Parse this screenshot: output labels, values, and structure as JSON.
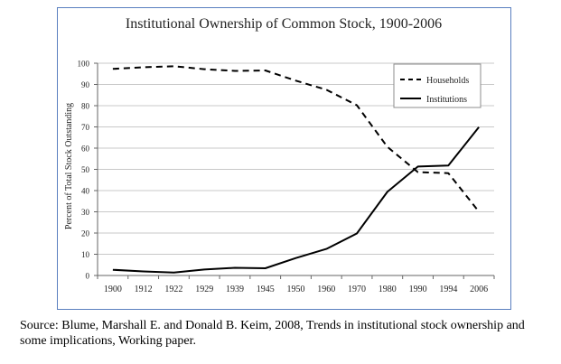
{
  "chart_data": {
    "type": "line",
    "title": "Institutional Ownership of Common Stock, 1900-2006",
    "xlabel": "",
    "ylabel": "Percent of Total Stock Outstanding",
    "categories": [
      "1900",
      "1912",
      "1922",
      "1929",
      "1939",
      "1945",
      "1950",
      "1960",
      "1970",
      "1980",
      "1990",
      "1994",
      "2006"
    ],
    "ylim": [
      0,
      100
    ],
    "yticks": [
      "0",
      "10",
      "20",
      "30",
      "40",
      "50",
      "60",
      "70",
      "80",
      "90",
      "100"
    ],
    "grid": true,
    "legend_position": "top-right",
    "series": [
      {
        "name": "Households",
        "style": "dashed",
        "values": [
          97.3,
          98.1,
          98.6,
          97.2,
          96.4,
          96.6,
          91.8,
          87.5,
          80.2,
          60.6,
          48.7,
          48.2,
          30.1
        ]
      },
      {
        "name": "Institutions",
        "style": "solid",
        "values": [
          2.7,
          1.9,
          1.4,
          2.8,
          3.6,
          3.4,
          8.2,
          12.5,
          19.8,
          39.4,
          51.3,
          51.8,
          69.9
        ]
      }
    ],
    "colors": {
      "line": "#000000",
      "grid": "#c8c8c8",
      "frame": "#5a7fbf"
    }
  },
  "source_note": "Source: Blume, Marshall E. and Donald B. Keim, 2008, Trends in institutional stock ownership and some implications, Working paper."
}
